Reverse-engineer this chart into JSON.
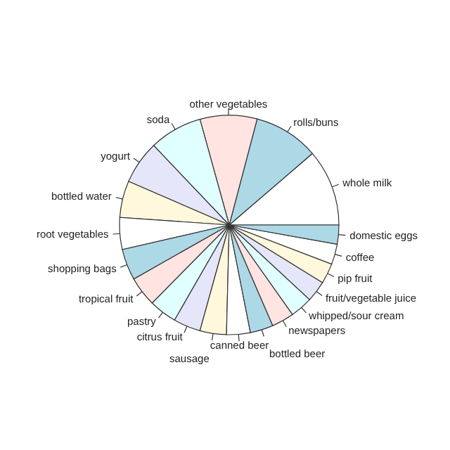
{
  "chart_data": {
    "type": "pie",
    "categories": [
      "whole milk",
      "rolls/buns",
      "other vegetables",
      "soda",
      "yogurt",
      "bottled water",
      "root vegetables",
      "shopping bags",
      "tropical fruit",
      "pastry",
      "citrus fruit",
      "sausage",
      "canned beer",
      "bottled beer",
      "newspapers",
      "whipped/sour cream",
      "fruit/vegetable juice",
      "pip fruit",
      "coffee",
      "domestic eggs"
    ],
    "values": [
      11.3,
      9.6,
      8.4,
      7.8,
      6.4,
      5.4,
      4.7,
      4.6,
      4.4,
      4.1,
      4.0,
      3.9,
      3.5,
      3.4,
      3.3,
      3.3,
      3.1,
      3.0,
      3.0,
      2.8
    ],
    "colors": [
      "#ffffff",
      "#add8e6",
      "#ffe4e1",
      "#e0ffff",
      "#e6e6fa",
      "#fff8dc",
      "#ffffff",
      "#add8e6",
      "#ffe4e1",
      "#e0ffff",
      "#e6e6fa",
      "#fff8dc",
      "#ffffff",
      "#add8e6",
      "#ffe4e1",
      "#e0ffff",
      "#e6e6fa",
      "#fff8dc",
      "#ffffff",
      "#add8e6"
    ]
  }
}
